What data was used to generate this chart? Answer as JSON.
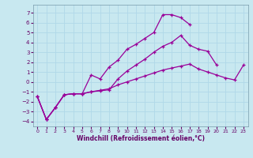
{
  "xlabel": "Windchill (Refroidissement éolien,°C)",
  "xlim": [
    -0.5,
    23.5
  ],
  "ylim": [
    -4.5,
    7.8
  ],
  "yticks": [
    -4,
    -3,
    -2,
    -1,
    0,
    1,
    2,
    3,
    4,
    5,
    6,
    7
  ],
  "xticks": [
    0,
    1,
    2,
    3,
    4,
    5,
    6,
    7,
    8,
    9,
    10,
    11,
    12,
    13,
    14,
    15,
    16,
    17,
    18,
    19,
    20,
    21,
    22,
    23
  ],
  "line_color": "#990099",
  "background_color": "#c8e8f0",
  "grid_color": "#b0d8e8",
  "line1_y": [
    -1.5,
    -3.8,
    -2.6,
    -1.3,
    -1.2,
    -1.2,
    0.7,
    0.3,
    1.5,
    2.2,
    3.3,
    3.8,
    4.4,
    5.0,
    6.8,
    6.8,
    6.5,
    5.8,
    null,
    null,
    null,
    null,
    null,
    null
  ],
  "line2_y": [
    -1.5,
    -3.8,
    -2.6,
    -1.3,
    -1.2,
    -1.2,
    -1.0,
    -0.9,
    -0.8,
    0.3,
    1.1,
    1.7,
    2.3,
    3.0,
    3.6,
    4.0,
    4.7,
    3.7,
    3.3,
    3.1,
    1.7,
    null,
    null,
    null
  ],
  "line3_y": [
    -1.5,
    -3.8,
    -2.6,
    -1.3,
    -1.2,
    -1.2,
    -1.0,
    -0.85,
    -0.7,
    -0.3,
    0.0,
    0.3,
    0.6,
    0.9,
    1.2,
    1.4,
    1.6,
    1.8,
    1.3,
    1.0,
    0.7,
    0.4,
    0.2,
    1.7
  ]
}
